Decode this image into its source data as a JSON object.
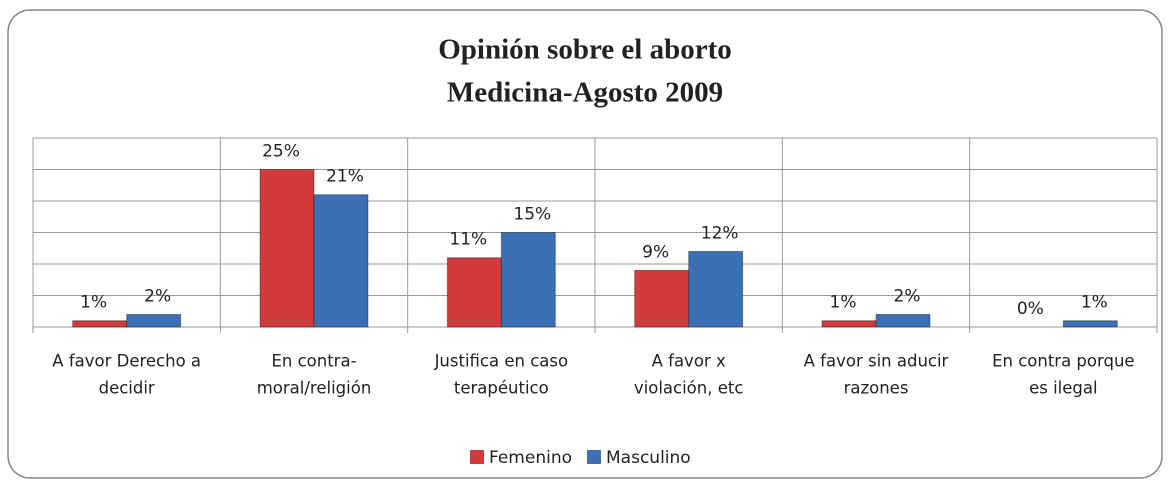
{
  "chart_data": {
    "type": "bar",
    "title": [
      "Opinión sobre el aborto",
      "Medicina-Agosto 2009"
    ],
    "categories": [
      [
        "A favor Derecho a",
        "decidir"
      ],
      [
        "En contra-",
        "moral/religión"
      ],
      [
        "Justifica en caso",
        "terapéutico"
      ],
      [
        "A favor x",
        "violación, etc"
      ],
      [
        "A favor sin aducir",
        "razones"
      ],
      [
        "En contra porque",
        "es ilegal"
      ]
    ],
    "series": [
      {
        "name": "Femenino",
        "color": "#d13b3b",
        "values": [
          1,
          25,
          11,
          9,
          1,
          0
        ],
        "value_labels": [
          "1%",
          "25%",
          "11%",
          "9%",
          "1%",
          "0%"
        ]
      },
      {
        "name": "Masculino",
        "color": "#3d6fb5",
        "values": [
          2,
          21,
          15,
          12,
          2,
          1
        ],
        "value_labels": [
          "2%",
          "21%",
          "15%",
          "12%",
          "2%",
          "1%"
        ]
      }
    ],
    "ylim": [
      0,
      30
    ],
    "yticks": [
      0,
      5,
      10,
      15,
      20,
      25,
      30
    ],
    "grid": true,
    "legend": "bottom"
  }
}
